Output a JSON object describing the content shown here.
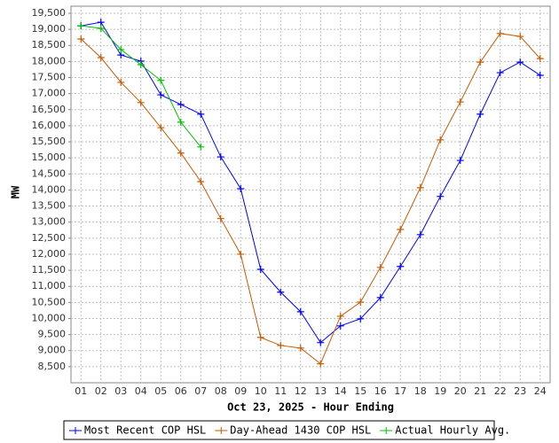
{
  "chart_data": {
    "type": "line",
    "x_label": "Oct 23, 2025 - Hour Ending",
    "y_label": "MW",
    "categories": [
      "01",
      "02",
      "03",
      "04",
      "05",
      "06",
      "07",
      "08",
      "09",
      "10",
      "11",
      "12",
      "13",
      "14",
      "15",
      "16",
      "17",
      "18",
      "19",
      "20",
      "21",
      "22",
      "23",
      "24"
    ],
    "series": [
      {
        "name": "Most Recent COP HSL",
        "color": "#0000ff",
        "values": [
          19110,
          19220,
          18200,
          18010,
          16960,
          16660,
          16360,
          15030,
          14040,
          11530,
          10820,
          10210,
          9250,
          9770,
          9990,
          10650,
          11620,
          12610,
          13800,
          14920,
          16360,
          17650,
          17980,
          17570
        ]
      },
      {
        "name": "Day-Ahead 1430 COP HSL",
        "color": "#c85a00",
        "values": [
          18700,
          18120,
          17350,
          16720,
          15940,
          15150,
          14260,
          13110,
          12000,
          9410,
          9160,
          9080,
          8590,
          10070,
          10510,
          11590,
          12770,
          14070,
          15560,
          16740,
          17980,
          18870,
          18780,
          18090
        ]
      },
      {
        "name": "Actual Hourly Avg.",
        "color": "#00c000",
        "values": [
          19110,
          19030,
          18370,
          17900,
          17410,
          16110,
          15340,
          null,
          null,
          null,
          null,
          null,
          null,
          null,
          null,
          null,
          null,
          null,
          null,
          null,
          null,
          null,
          null,
          null
        ]
      }
    ],
    "ylim": [
      8000,
      19720
    ],
    "yticks": [
      {
        "value": 8500,
        "label": "8,500"
      },
      {
        "value": 9000,
        "label": "9,000"
      },
      {
        "value": 9500,
        "label": "9,500"
      },
      {
        "value": 10000,
        "label": "10,000"
      },
      {
        "value": 10500,
        "label": "10,500"
      },
      {
        "value": 11000,
        "label": "11,000"
      },
      {
        "value": 11500,
        "label": "11,500"
      },
      {
        "value": 12000,
        "label": "12,000"
      },
      {
        "value": 12500,
        "label": "12,500"
      },
      {
        "value": 13000,
        "label": "13,000"
      },
      {
        "value": 13500,
        "label": "13,500"
      },
      {
        "value": 14000,
        "label": "14,000"
      },
      {
        "value": 14500,
        "label": "14,500"
      },
      {
        "value": 15000,
        "label": "15,000"
      },
      {
        "value": 15500,
        "label": "15,500"
      },
      {
        "value": 16000,
        "label": "16,000"
      },
      {
        "value": 16500,
        "label": "16,500"
      },
      {
        "value": 17000,
        "label": "17,000"
      },
      {
        "value": 17500,
        "label": "17,500"
      },
      {
        "value": 18000,
        "label": "18,000"
      },
      {
        "value": 18500,
        "label": "18,500"
      },
      {
        "value": 19000,
        "label": "19,000"
      },
      {
        "value": 19500,
        "label": "19,500"
      }
    ],
    "grid": true
  }
}
